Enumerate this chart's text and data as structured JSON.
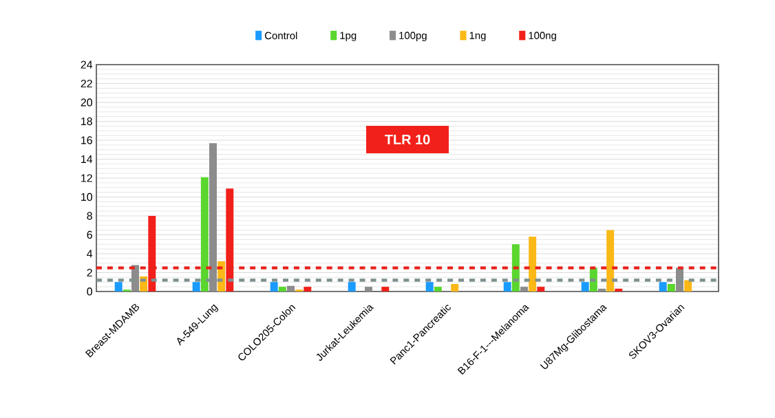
{
  "chart_data": {
    "type": "bar",
    "title": "TLR 10",
    "categories": [
      "Breast-MDAMB",
      "A-549-Lung",
      "COLO205-Colon",
      "Jurkat-Leukemia",
      "Panc1-Pancreatic",
      "B16-F-1---Melanoma",
      "U87Mg-Glibostama",
      "SKOV3-Ovarian"
    ],
    "series": [
      {
        "name": "Control",
        "color": "#1a9bff",
        "values": [
          1.0,
          1.0,
          1.0,
          1.0,
          1.0,
          1.0,
          1.0,
          1.0
        ]
      },
      {
        "name": "1pg",
        "color": "#5ad62e",
        "values": [
          0.2,
          12.1,
          0.5,
          0,
          0.5,
          5.0,
          2.5,
          0.8
        ]
      },
      {
        "name": "100pg",
        "color": "#8c8c8c",
        "values": [
          2.8,
          15.7,
          0.6,
          0.5,
          0,
          0.5,
          0.3,
          2.5
        ]
      },
      {
        "name": "1ng",
        "color": "#fbb817",
        "values": [
          1.6,
          3.2,
          0.2,
          0,
          0.8,
          5.8,
          6.5,
          1.2
        ]
      },
      {
        "name": "100ng",
        "color": "#f2201a",
        "values": [
          8.0,
          10.9,
          0.5,
          0.5,
          0,
          0.5,
          0.3,
          0
        ]
      }
    ],
    "ylim": [
      0,
      24
    ],
    "yticks": [
      0,
      2,
      4,
      6,
      8,
      10,
      12,
      14,
      16,
      18,
      20,
      22,
      24
    ],
    "grid": "y",
    "legend": "top",
    "ref_lines": [
      {
        "axis": "y",
        "value": 2.5,
        "color": "#e8221b",
        "line_style": "dashed"
      },
      {
        "axis": "y",
        "value": 1.2,
        "color": "#7f9090",
        "line_style": "dashed"
      }
    ]
  }
}
